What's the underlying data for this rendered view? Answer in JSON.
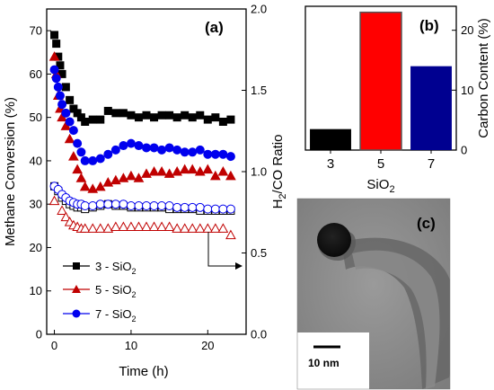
{
  "chart_data": [
    {
      "panel_label": "(a)",
      "type": "scatter",
      "xlabel": "Time (h)",
      "ylabel": "Methane Conversion (%)",
      "y2label_main": "H",
      "y2label_sub": "2",
      "y2label_rest": "/CO Ratio",
      "xlim": [
        -1,
        25
      ],
      "ylim": [
        0,
        75
      ],
      "y2lim": [
        0.0,
        2.0
      ],
      "xticks": [
        "0",
        "10",
        "20"
      ],
      "yticks": [
        "0",
        "10",
        "20",
        "30",
        "40",
        "50",
        "60",
        "70"
      ],
      "y2ticks": [
        "0.0",
        "0.5",
        "1.0",
        "1.5",
        "2.0"
      ],
      "colors": {
        "3": "#000000",
        "5": "#c00000",
        "7": "#0000ee"
      },
      "legend": {
        "placement": "lower-left",
        "entries": [
          {
            "main": "3 - SiO",
            "sub": "2"
          },
          {
            "main": "5 - SiO",
            "sub": "2"
          },
          {
            "main": "7 - SiO",
            "sub": "2"
          }
        ]
      },
      "series": [
        {
          "axis": "left",
          "marker": "square",
          "filled": true,
          "color": "#000000",
          "x": [
            0,
            0.25,
            0.5,
            0.75,
            1,
            1.5,
            2,
            2.5,
            3,
            3.5,
            4,
            5,
            6,
            7,
            8,
            9,
            10,
            11,
            12,
            13,
            14,
            15,
            16,
            17,
            18,
            19,
            20,
            21,
            22,
            23
          ],
          "y": [
            69,
            67,
            64,
            62,
            60,
            57,
            54,
            52,
            51,
            50,
            49,
            49.5,
            49.5,
            51.5,
            51,
            51,
            50.5,
            50,
            50.5,
            50,
            50.5,
            50.5,
            50,
            50.5,
            50,
            50.5,
            49.5,
            50,
            49,
            49.5
          ]
        },
        {
          "axis": "left",
          "marker": "triangle",
          "filled": true,
          "color": "#c00000",
          "x": [
            0,
            0.25,
            0.5,
            0.75,
            1,
            1.5,
            2,
            2.5,
            3,
            3.5,
            4,
            5,
            6,
            7,
            8,
            9,
            10,
            11,
            12,
            13,
            14,
            15,
            16,
            17,
            18,
            19,
            20,
            21,
            22,
            23
          ],
          "y": [
            64,
            60,
            55,
            52,
            50,
            48,
            45,
            41,
            38,
            36,
            34,
            33.5,
            34,
            35,
            35.5,
            36,
            36.5,
            36,
            37,
            37.5,
            37.5,
            37,
            37.5,
            38,
            38,
            37.5,
            38,
            36.5,
            37.5,
            36.5
          ]
        },
        {
          "axis": "left",
          "marker": "circle",
          "filled": true,
          "color": "#0000ee",
          "x": [
            0,
            0.25,
            0.5,
            0.75,
            1,
            1.5,
            2,
            2.5,
            3,
            3.5,
            4,
            5,
            6,
            7,
            8,
            9,
            10,
            11,
            12,
            13,
            14,
            15,
            16,
            17,
            18,
            19,
            20,
            21,
            22,
            23
          ],
          "y": [
            61,
            59,
            57,
            55,
            53,
            51,
            49,
            47,
            44,
            42,
            40,
            40,
            40.5,
            41.5,
            42.5,
            43.5,
            44,
            43.5,
            43,
            43,
            42.5,
            43,
            42.5,
            42,
            42,
            42.5,
            41.5,
            41.5,
            41.5,
            41
          ]
        },
        {
          "axis": "right",
          "marker": "square",
          "filled": false,
          "color": "#000000",
          "x": [
            0,
            0.5,
            1,
            1.5,
            2,
            2.5,
            3,
            3.5,
            4,
            5,
            6,
            7,
            8,
            9,
            10,
            11,
            12,
            13,
            14,
            15,
            16,
            17,
            18,
            19,
            20,
            21,
            22,
            23
          ],
          "y": [
            0.91,
            0.88,
            0.84,
            0.82,
            0.8,
            0.79,
            0.78,
            0.78,
            0.77,
            0.78,
            0.79,
            0.8,
            0.79,
            0.79,
            0.78,
            0.78,
            0.78,
            0.78,
            0.78,
            0.77,
            0.77,
            0.77,
            0.77,
            0.76,
            0.76,
            0.76,
            0.76,
            0.76
          ]
        },
        {
          "axis": "right",
          "marker": "triangle",
          "filled": false,
          "color": "#c00000",
          "x": [
            0,
            1,
            1.5,
            2,
            2.5,
            3,
            3.5,
            4,
            5,
            6,
            7,
            8,
            9,
            10,
            11,
            12,
            13,
            14,
            15,
            16,
            17,
            18,
            19,
            20,
            21,
            22,
            23
          ],
          "y": [
            0.82,
            0.76,
            0.72,
            0.69,
            0.67,
            0.66,
            0.65,
            0.65,
            0.65,
            0.65,
            0.65,
            0.66,
            0.66,
            0.66,
            0.66,
            0.66,
            0.66,
            0.66,
            0.66,
            0.65,
            0.65,
            0.65,
            0.65,
            0.65,
            0.65,
            0.65,
            0.61
          ]
        },
        {
          "axis": "right",
          "marker": "circle",
          "filled": false,
          "color": "#0000ee",
          "x": [
            0,
            0.5,
            1,
            1.5,
            2,
            2.5,
            3,
            3.5,
            4,
            5,
            6,
            7,
            8,
            9,
            10,
            11,
            12,
            13,
            14,
            15,
            16,
            17,
            18,
            19,
            20,
            21,
            22,
            23
          ],
          "y": [
            0.91,
            0.89,
            0.86,
            0.84,
            0.82,
            0.81,
            0.8,
            0.8,
            0.79,
            0.79,
            0.8,
            0.8,
            0.8,
            0.8,
            0.79,
            0.79,
            0.79,
            0.79,
            0.79,
            0.79,
            0.78,
            0.78,
            0.78,
            0.78,
            0.77,
            0.77,
            0.77,
            0.77
          ]
        }
      ]
    },
    {
      "panel_label": "(b)",
      "type": "bar",
      "categories": [
        "3",
        "5",
        "7"
      ],
      "values": [
        3.5,
        23,
        14
      ],
      "colors": [
        "#000000",
        "#ff0000",
        "#000090"
      ],
      "xlabel": "SiO",
      "xlabel_sub": "2",
      "ylabel": "Carbon Content (%)",
      "ylim": [
        0,
        24
      ],
      "yticks": [
        "0",
        "10",
        "20"
      ]
    }
  ],
  "image_panel": {
    "panel_label": "(c)",
    "scale_label": "10 nm"
  }
}
